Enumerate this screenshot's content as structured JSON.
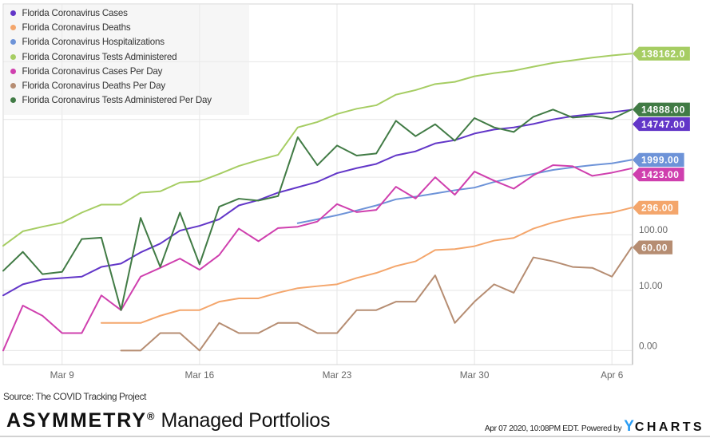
{
  "chart_data": {
    "type": "line",
    "title": "",
    "xlabel": "",
    "ylabel": "",
    "yscale": "log10(v+1)",
    "ylim": [
      -0.43,
      999999
    ],
    "grid": true,
    "legend_position": "top-left",
    "x": [
      "Mar 6",
      "Mar 7",
      "Mar 8",
      "Mar 9",
      "Mar 10",
      "Mar 11",
      "Mar 12",
      "Mar 13",
      "Mar 14",
      "Mar 15",
      "Mar 16",
      "Mar 17",
      "Mar 18",
      "Mar 19",
      "Mar 20",
      "Mar 21",
      "Mar 22",
      "Mar 23",
      "Mar 24",
      "Mar 25",
      "Mar 26",
      "Mar 27",
      "Mar 28",
      "Mar 29",
      "Mar 30",
      "Mar 31",
      "Apr 1",
      "Apr 2",
      "Apr 3",
      "Apr 4",
      "Apr 5",
      "Apr 6",
      "Apr 7"
    ],
    "xticks": [
      "Mar 9",
      "Mar 16",
      "Mar 23",
      "Mar 30",
      "Apr 6"
    ],
    "yticks": [
      {
        "value": 0,
        "label": "0.00"
      },
      {
        "value": 10,
        "label": "10.00"
      },
      {
        "value": 100,
        "label": "100.00"
      }
    ],
    "ygrid": [
      0,
      10,
      100,
      1000,
      10000,
      100000
    ],
    "series": [
      {
        "name": "Florida Coronavirus Cases",
        "color": "#6236c8",
        "end_label": "14747.00",
        "values": [
          8,
          13,
          16,
          17,
          18,
          27,
          31,
          49,
          70,
          118,
          143,
          186,
          324,
          401,
          540,
          669,
          830,
          1176,
          1437,
          1700,
          2390,
          2805,
          3850,
          4385,
          5710,
          6690,
          7290,
          8370,
          10030,
          11400,
          12420,
          13324,
          14747
        ]
      },
      {
        "name": "Florida Coronavirus Deaths",
        "color": "#f4a66c",
        "end_label": "296.00",
        "values": [
          null,
          null,
          null,
          null,
          null,
          2,
          2,
          2,
          3,
          4,
          4,
          6,
          7,
          7,
          9,
          11,
          12,
          13,
          17,
          21,
          28,
          34,
          54,
          56,
          63,
          79,
          88,
          128,
          164,
          197,
          223,
          243,
          296
        ]
      },
      {
        "name": "Florida Coronavirus Hospitalizations",
        "color": "#6d93d8",
        "end_label": "1999.00",
        "values": [
          null,
          null,
          null,
          null,
          null,
          null,
          null,
          null,
          null,
          null,
          null,
          null,
          null,
          null,
          null,
          159,
          186,
          219,
          265,
          324,
          414,
          460,
          523,
          595,
          660,
          827,
          990,
          1140,
          1337,
          1483,
          1617,
          1740,
          1999
        ]
      },
      {
        "name": "Florida Coronavirus Tests Administered",
        "color": "#a6cd63",
        "end_label": "138162.0",
        "values": [
          64,
          115,
          138,
          162,
          243,
          335,
          335,
          540,
          570,
          810,
          845,
          1140,
          1565,
          1977,
          2445,
          7290,
          9036,
          12420,
          15340,
          17630,
          26900,
          32280,
          41100,
          44800,
          56000,
          63650,
          70000,
          82100,
          95300,
          105900,
          117700,
          128300,
          138162
        ]
      },
      {
        "name": "Florida Coronavirus Cases Per Day",
        "color": "#cf3fae",
        "end_label": "1423.00",
        "values": [
          0,
          5,
          3,
          1,
          1,
          8,
          4,
          18,
          26,
          38,
          24,
          44,
          128,
          77,
          131,
          138,
          170,
          342,
          248,
          271,
          683,
          428,
          1000,
          497,
          1253,
          872,
          633,
          1078,
          1617,
          1549,
          1056,
          1198,
          1423
        ]
      },
      {
        "name": "Florida Coronavirus Deaths Per Day",
        "color": "#b68d72",
        "end_label": "60.00",
        "values": [
          null,
          null,
          null,
          null,
          null,
          null,
          0,
          0,
          1,
          1,
          0,
          2,
          1,
          1,
          2,
          2,
          1,
          1,
          4,
          4,
          6,
          6,
          19,
          2,
          6,
          13,
          9,
          40,
          34,
          27,
          26,
          18,
          60
        ]
      },
      {
        "name": "Florida Coronavirus Tests Administered Per Day",
        "color": "#417b45",
        "end_label": "14888.00",
        "values": [
          23,
          50,
          20,
          22,
          84,
          89,
          4,
          197,
          27,
          243,
          30,
          308,
          424,
          393,
          471,
          4930,
          1618,
          3540,
          2370,
          2575,
          9500,
          5140,
          8280,
          4290,
          10590,
          7290,
          6080,
          11140,
          14850,
          10790,
          11510,
          10260,
          14888
        ]
      }
    ]
  },
  "footer": {
    "source": "Source: The COVID Tracking Project",
    "brand_bold": "ASYMMETRY",
    "brand_mark": "®",
    "brand_rest": "Managed Portfolios",
    "timestamp": "Apr 07 2020, 10:08PM EDT.",
    "powered_by": "Powered by",
    "logo_y": "Y",
    "logo_rest": "CHARTS"
  }
}
